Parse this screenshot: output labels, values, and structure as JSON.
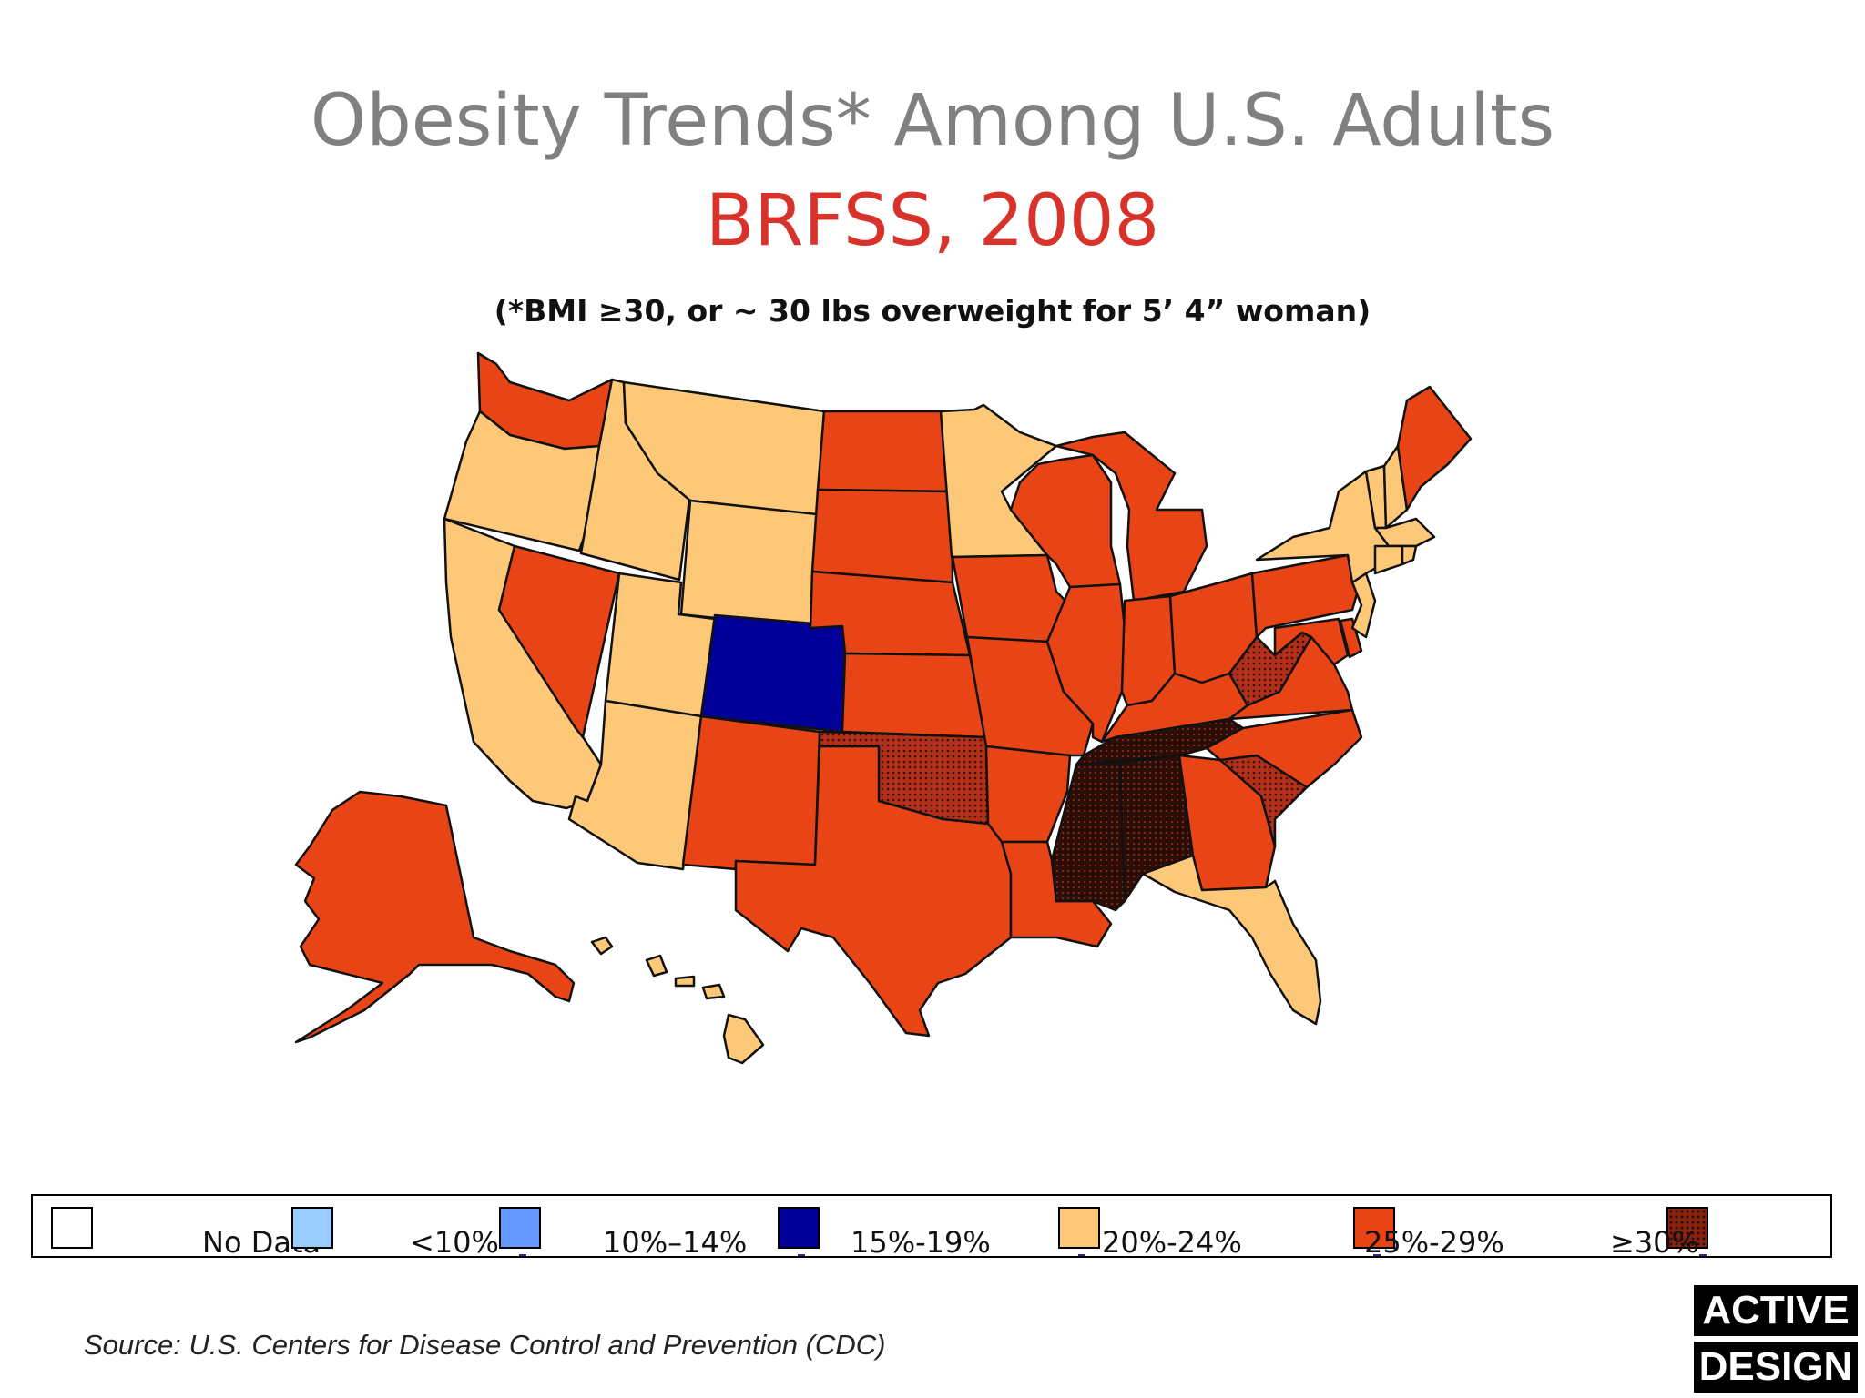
{
  "title": "Obesity Trends* Among U.S. Adults",
  "subtitle": "BRFSS, 2008",
  "note": "(*BMI ≥30, or ~ 30 lbs overweight for 5’ 4” woman)",
  "legend": [
    {
      "label": "No Data",
      "color": "#ffffff",
      "pattern": false
    },
    {
      "label": "<10%",
      "color": "#99ccff",
      "pattern": false
    },
    {
      "label": "10%–14%",
      "color": "#6699ff",
      "pattern": false
    },
    {
      "label": "15%-19%",
      "color": "#000099",
      "pattern": false
    },
    {
      "label": "20%-24%",
      "color": "#fdc878",
      "pattern": false
    },
    {
      "label": "25%-29%",
      "color": "#e84415",
      "pattern": false
    },
    {
      "label": "≥30%",
      "color": "#9a1c10",
      "pattern": true
    }
  ],
  "source": "Source: U.S. Centers for Disease Control and Prevention (CDC)",
  "brand": {
    "line1": "ACTIVE",
    "line2": "DESIGN"
  },
  "map_data": {
    "category_colors": {
      "15-19": "#000099",
      "20-24": "#fdc878",
      "25-29": "#e84415",
      "30+": "#9a1c10",
      "30+dark": "#2c0e08"
    },
    "states": {
      "CO": "15-19",
      "WA": "25-29",
      "OR": "20-24",
      "CA": "20-24",
      "NV": "25-29",
      "ID": "20-24",
      "MT": "20-24",
      "WY": "20-24",
      "UT": "20-24",
      "AZ": "20-24",
      "NM": "25-29",
      "ND": "25-29",
      "SD": "25-29",
      "NE": "25-29",
      "KS": "25-29",
      "OK": "30+",
      "TX": "25-29",
      "MN": "20-24",
      "IA": "25-29",
      "MO": "25-29",
      "AR": "25-29",
      "LA": "25-29",
      "WI": "25-29",
      "IL": "25-29",
      "MI": "25-29",
      "IN": "25-29",
      "OH": "25-29",
      "KY": "25-29",
      "TN": "30+",
      "MS": "30+",
      "AL": "30+",
      "GA": "25-29",
      "FL": "20-24",
      "SC": "30+",
      "NC": "25-29",
      "VA": "25-29",
      "WV": "30+",
      "PA": "25-29",
      "NY": "20-24",
      "VT": "20-24",
      "NH": "20-24",
      "ME": "25-29",
      "MA": "20-24",
      "RI": "20-24",
      "CT": "20-24",
      "NJ": "20-24",
      "DE": "25-29",
      "MD": "25-29",
      "AK": "25-29",
      "HI": "20-24"
    }
  }
}
